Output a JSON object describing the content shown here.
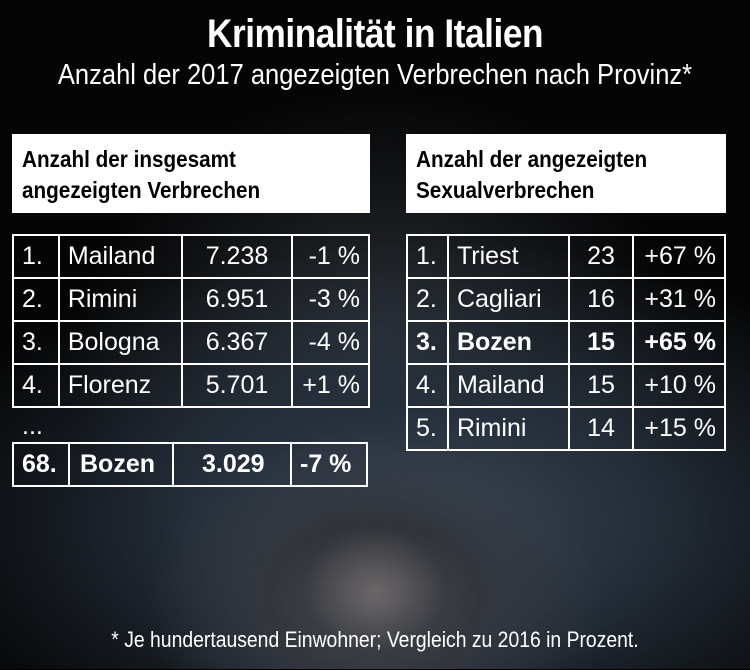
{
  "title": "Kriminalität in Italien",
  "subtitle": "Anzahl der 2017 angezeigten Verbrechen nach Provinz*",
  "left": {
    "header_line1": "Anzahl der insgesamt",
    "header_line2": "angezeigten Verbrechen",
    "rows": [
      {
        "rank": "1.",
        "city": "Mailand",
        "count": "7.238",
        "change": "-1 %"
      },
      {
        "rank": "2.",
        "city": "Rimini",
        "count": "6.951",
        "change": "-3 %"
      },
      {
        "rank": "3.",
        "city": "Bologna",
        "count": "6.367",
        "change": "-4 %"
      },
      {
        "rank": "4.",
        "city": "Florenz",
        "count": "5.701",
        "change": "+1 %"
      }
    ],
    "ellipsis": "...",
    "highlight": {
      "rank": "68.",
      "city": "Bozen",
      "count": "3.029",
      "change": "-7 %"
    }
  },
  "right": {
    "header_line1": "Anzahl der angezeigten",
    "header_line2": "Sexualverbrechen",
    "rows": [
      {
        "rank": "1.",
        "city": "Triest",
        "count": "23",
        "change": "+67 %"
      },
      {
        "rank": "2.",
        "city": "Cagliari",
        "count": "16",
        "change": "+31 %"
      },
      {
        "rank": "3.",
        "city": "Bozen",
        "count": "15",
        "change": "+65 %"
      },
      {
        "rank": "4.",
        "city": "Mailand",
        "count": "15",
        "change": "+10 %"
      },
      {
        "rank": "5.",
        "city": "Rimini",
        "count": "14",
        "change": "+15 %"
      }
    ]
  },
  "footnote": "* Je hundertausend Einwohner; Vergleich zu 2016 in Prozent."
}
